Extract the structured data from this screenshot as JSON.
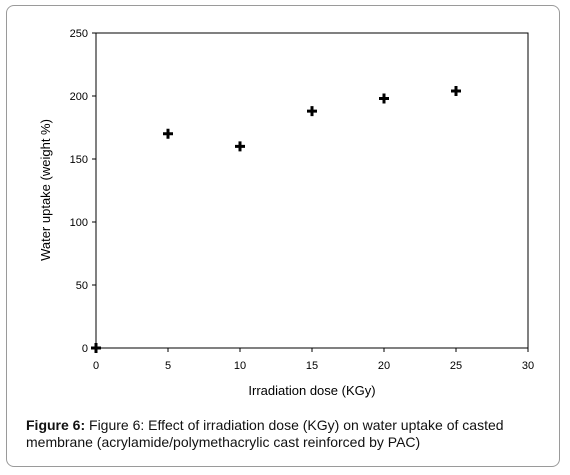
{
  "chart_data": {
    "type": "scatter",
    "xlabel": "Irradiation dose (KGy)",
    "ylabel": "Water uptake (weight %)",
    "xlim": [
      0,
      30
    ],
    "ylim": [
      0,
      250
    ],
    "x_ticks": [
      "0",
      "5",
      "10",
      "15",
      "20",
      "25",
      "30"
    ],
    "y_ticks": [
      "0",
      "50",
      "100",
      "150",
      "200",
      "250"
    ],
    "grid": false,
    "points": [
      {
        "x": 0,
        "y": 0
      },
      {
        "x": 5,
        "y": 170
      },
      {
        "x": 10,
        "y": 160
      },
      {
        "x": 15,
        "y": 188
      },
      {
        "x": 20,
        "y": 198
      },
      {
        "x": 25,
        "y": 204
      }
    ],
    "marker_color": "#000000"
  },
  "caption": {
    "label": "Figure 6:",
    "text": " Figure 6: Effect of irradiation dose (KGy) on water uptake of casted membrane (acrylamide/polymethacrylic cast reinforced by PAC)"
  }
}
